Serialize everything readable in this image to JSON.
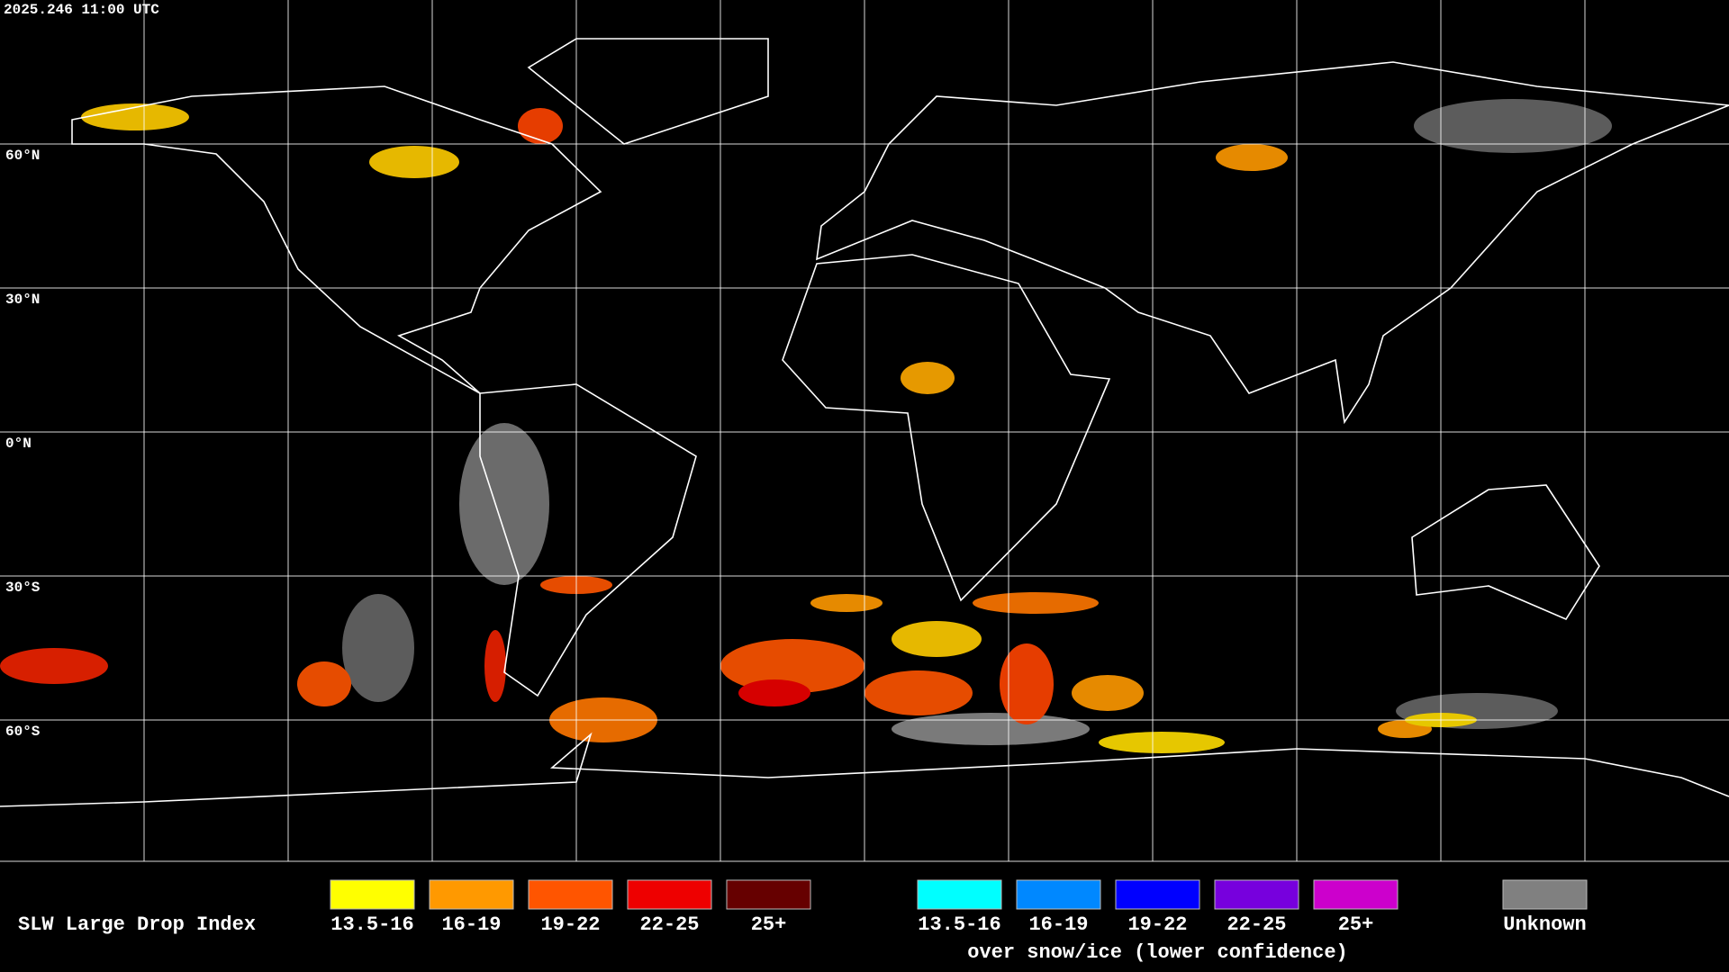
{
  "header": {
    "timestamp": "2025.246 11:00 UTC"
  },
  "map": {
    "latitude_labels": [
      "60°N",
      "30°N",
      "0°N",
      "30°S",
      "60°S"
    ]
  },
  "legend": {
    "title": "SLW Large Drop Index",
    "groups": [
      {
        "items": [
          {
            "label": "13.5-16",
            "color": "#ffff00"
          },
          {
            "label": "16-19",
            "color": "#ff9900"
          },
          {
            "label": "19-22",
            "color": "#ff5500"
          },
          {
            "label": "22-25",
            "color": "#ee0000"
          },
          {
            "label": "25+",
            "color": "#660000"
          }
        ]
      },
      {
        "caption": "over snow/ice (lower confidence)",
        "items": [
          {
            "label": "13.5-16",
            "color": "#00ffff"
          },
          {
            "label": "16-19",
            "color": "#0088ff"
          },
          {
            "label": "19-22",
            "color": "#0000ff"
          },
          {
            "label": "22-25",
            "color": "#7700dd"
          },
          {
            "label": "25+",
            "color": "#cc00cc"
          }
        ]
      },
      {
        "items": [
          {
            "label": "Unknown",
            "color": "#808080"
          }
        ]
      }
    ]
  }
}
